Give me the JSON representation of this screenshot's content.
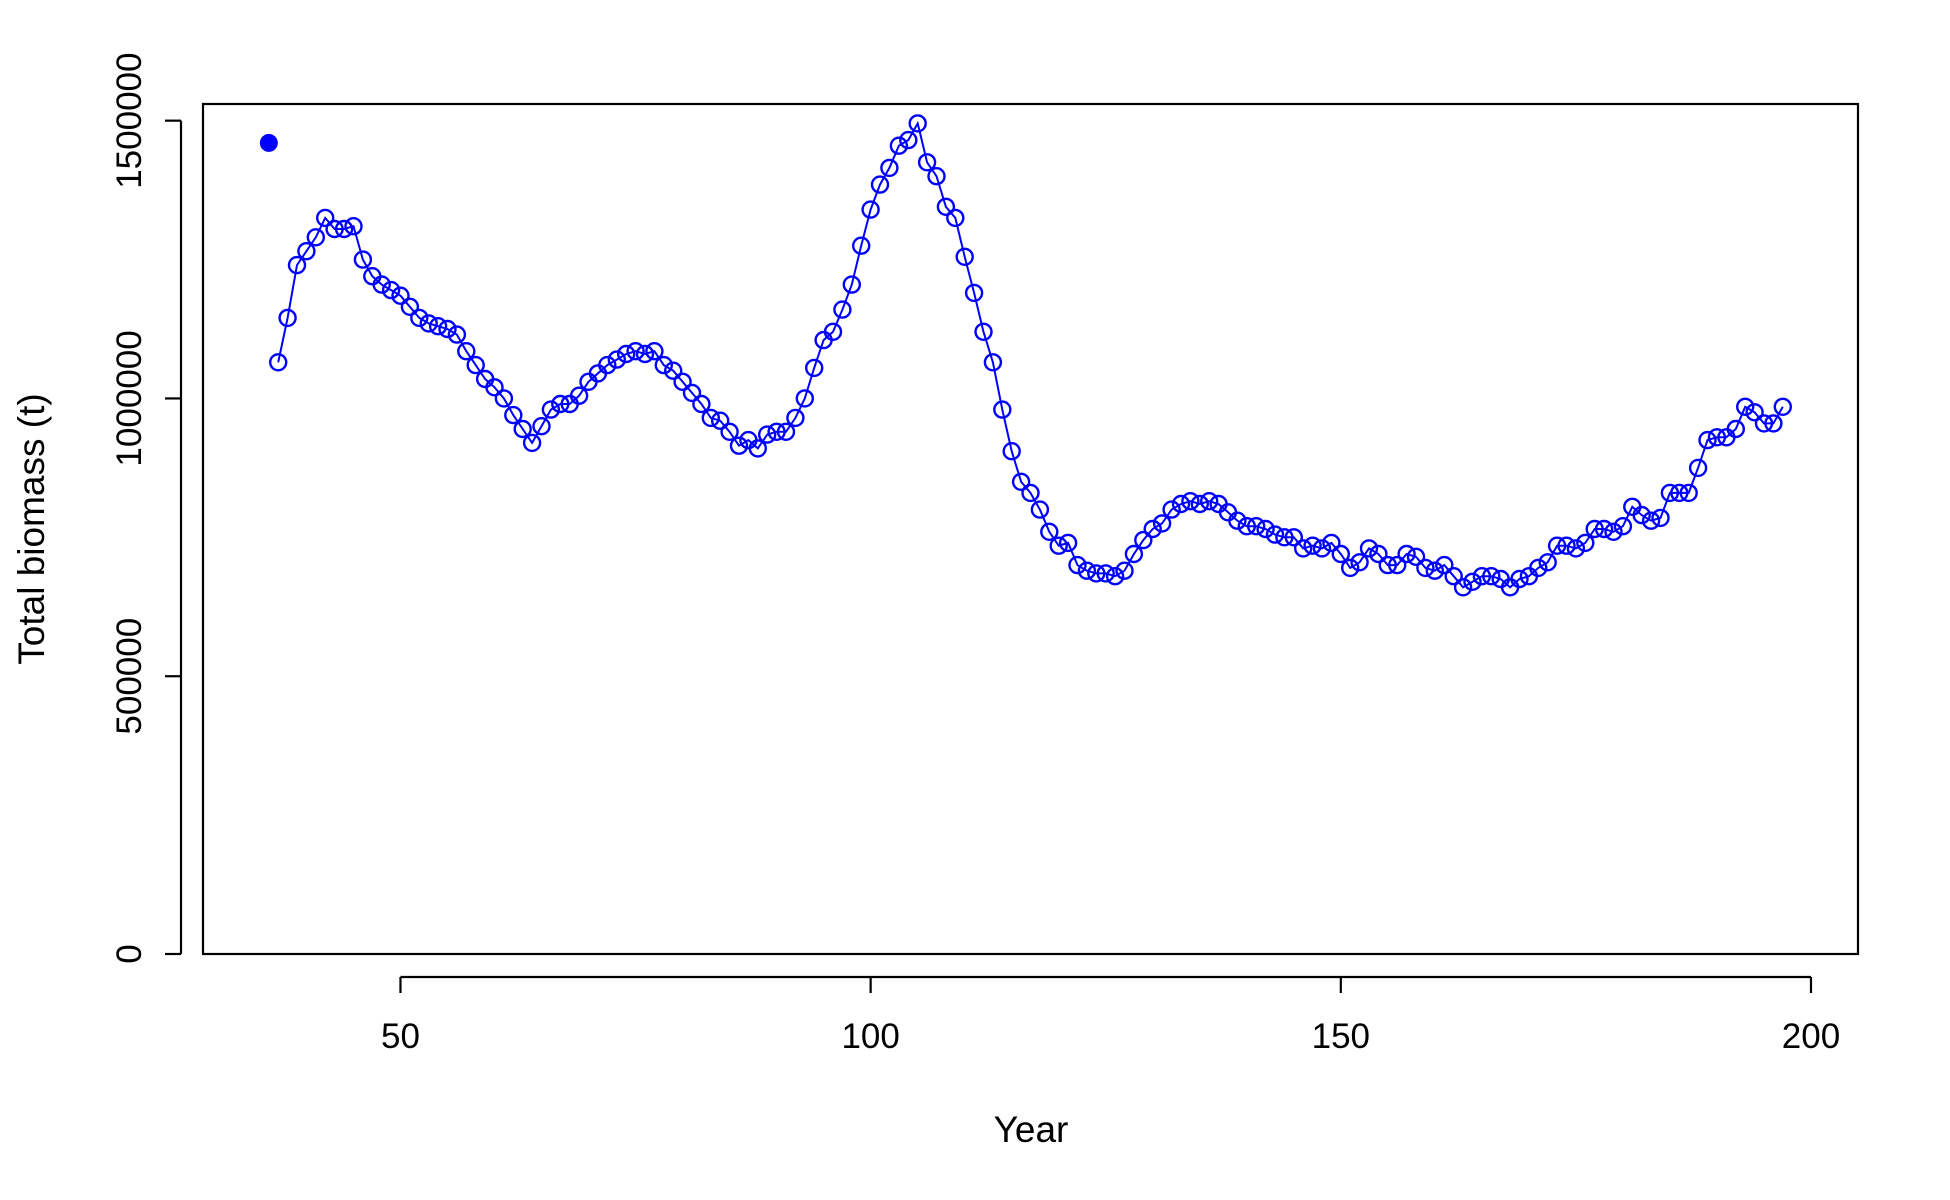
{
  "chart_data": {
    "type": "line",
    "title": "",
    "xlabel": "Year",
    "ylabel": "Total biomass (t)",
    "xlim": [
      29,
      205
    ],
    "ylim": [
      0,
      1530000
    ],
    "x_ticks": [
      50,
      100,
      150,
      200
    ],
    "y_ticks": [
      0,
      500000,
      1000000,
      1500000
    ],
    "x_tick_labels": [
      "50",
      "100",
      "150",
      "200"
    ],
    "y_tick_labels": [
      "0",
      "500000",
      "1000000",
      "1500000"
    ],
    "grid": false,
    "legend": "none",
    "color": "#0000ff",
    "initial_point": {
      "x": 36,
      "y": 1460000
    },
    "series": [
      {
        "x": [
          37,
          38,
          39,
          40,
          41,
          42,
          43,
          44,
          45,
          46,
          47,
          48,
          49,
          50,
          51,
          52,
          53,
          54,
          55,
          56,
          57,
          58,
          59,
          60,
          61,
          62,
          63,
          64,
          65,
          66,
          67,
          68,
          69,
          70,
          71,
          72,
          73,
          74,
          75,
          76,
          77,
          78,
          79,
          80,
          81,
          82,
          83,
          84,
          85,
          86,
          87,
          88,
          89,
          90,
          91,
          92,
          93,
          94,
          95,
          96,
          97,
          98,
          99,
          100,
          101,
          102,
          103,
          104,
          105,
          106,
          107,
          108,
          109,
          110,
          111,
          112,
          113,
          114,
          115,
          116,
          117,
          118,
          119,
          120,
          121,
          122,
          123,
          124,
          125,
          126,
          127,
          128,
          129,
          130,
          131,
          132,
          133,
          134,
          135,
          136,
          137,
          138,
          139,
          140,
          141,
          142,
          143,
          144,
          145,
          146,
          147,
          148,
          149,
          150,
          151,
          152,
          153,
          154,
          155,
          156,
          157,
          158,
          159,
          160,
          161,
          162,
          163,
          164,
          165,
          166,
          167,
          168,
          169,
          170,
          171,
          172,
          173,
          174,
          175,
          176,
          177,
          178,
          179,
          180,
          181,
          182,
          183,
          184,
          185,
          186,
          187,
          188,
          189,
          190,
          191,
          192,
          193,
          194,
          195,
          196,
          197
        ],
        "y": [
          1065000,
          1145000,
          1240000,
          1265000,
          1290000,
          1325000,
          1305000,
          1305000,
          1310000,
          1250000,
          1220000,
          1205000,
          1195000,
          1185000,
          1165000,
          1145000,
          1135000,
          1130000,
          1125000,
          1115000,
          1085000,
          1060000,
          1035000,
          1020000,
          1000000,
          970000,
          945000,
          920000,
          950000,
          980000,
          990000,
          990000,
          1005000,
          1030000,
          1045000,
          1060000,
          1070000,
          1080000,
          1085000,
          1080000,
          1085000,
          1060000,
          1050000,
          1030000,
          1010000,
          990000,
          965000,
          960000,
          940000,
          915000,
          925000,
          910000,
          935000,
          940000,
          940000,
          965000,
          1000000,
          1055000,
          1105000,
          1120000,
          1160000,
          1205000,
          1275000,
          1340000,
          1385000,
          1415000,
          1455000,
          1465000,
          1495000,
          1425000,
          1400000,
          1345000,
          1325000,
          1255000,
          1190000,
          1120000,
          1065000,
          980000,
          905000,
          850000,
          830000,
          800000,
          760000,
          735000,
          740000,
          700000,
          690000,
          685000,
          685000,
          680000,
          690000,
          720000,
          745000,
          765000,
          775000,
          800000,
          810000,
          815000,
          810000,
          815000,
          810000,
          795000,
          780000,
          770000,
          770000,
          765000,
          755000,
          750000,
          750000,
          730000,
          735000,
          730000,
          740000,
          720000,
          695000,
          705000,
          730000,
          720000,
          700000,
          700000,
          720000,
          715000,
          695000,
          690000,
          700000,
          680000,
          660000,
          670000,
          680000,
          680000,
          675000,
          660000,
          675000,
          680000,
          695000,
          705000,
          735000,
          735000,
          730000,
          740000,
          765000,
          765000,
          760000,
          770000,
          805000,
          790000,
          780000,
          785000,
          830000,
          830000,
          830000,
          875000,
          925000,
          930000,
          930000,
          945000,
          985000,
          975000,
          955000,
          955000,
          985000
        ]
      }
    ]
  }
}
